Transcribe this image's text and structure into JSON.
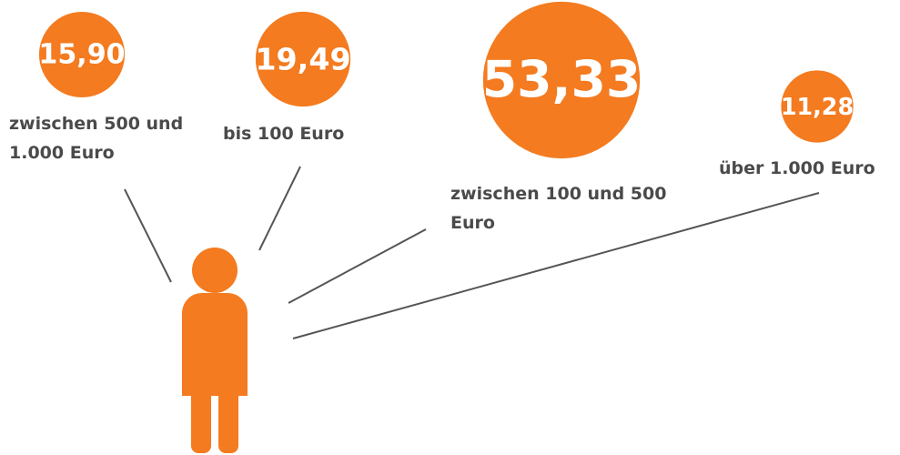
{
  "chart_data": {
    "type": "bubble",
    "categories": [
      "zwischen 500 und 1.000 Euro",
      "bis 100 Euro",
      "zwischen 100 und 500 Euro",
      "über 1.000 Euro"
    ],
    "values": [
      15.9,
      19.49,
      53.33,
      11.28
    ],
    "value_labels": [
      "15,90",
      "19,49",
      "53,33",
      "11,28"
    ],
    "color": "#f47b20"
  }
}
